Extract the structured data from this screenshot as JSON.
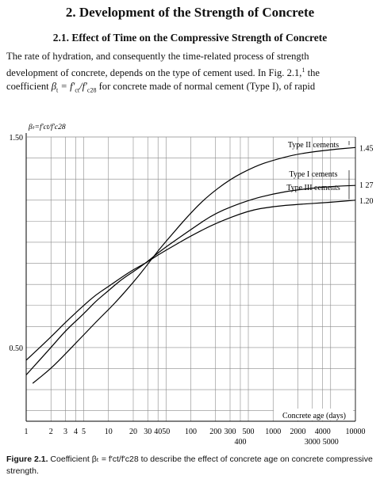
{
  "section": {
    "title": "2. Development of the Strength of Concrete"
  },
  "subsection": {
    "title": "2.1. Effect of Time on the Compressive Strength of Concrete"
  },
  "paragraph": {
    "line1": "The rate of hydration, and consequently the time-related process of strength",
    "line2_pre": "development of concrete, depends on the type of cement used. In Fig. 2.1,",
    "line2_sup": "1",
    "line2_post": " the",
    "line3_pre": "coefficient ",
    "beta_symbol": "β",
    "beta_sub": "t",
    "line3_eq": " = f′",
    "fct_sub": "ct",
    "fc28": "/f′",
    "fc28_sub": "c28",
    "line3_post": " for concrete made of normal cement (Type I), of rapid"
  },
  "caption": {
    "label": "Figure 2.1.",
    "text": " Coefficient βₜ = f′ct/f′c28 to describe the effect of concrete age on concrete compressive strength."
  },
  "chart_data": {
    "type": "line",
    "x_scale": "log",
    "xlim": [
      1,
      10000
    ],
    "ylim": [
      0.15,
      1.5
    ],
    "ylabel": "βₜ=f′ct/f′c28",
    "xlabel": "Concrete age (days)",
    "y_tick_labels": [
      {
        "value": 1.5,
        "label": "1.50"
      },
      {
        "value": 0.5,
        "label": "0.50"
      }
    ],
    "y_grid": [
      0.2,
      0.3,
      0.4,
      0.5,
      0.6,
      0.7,
      0.8,
      0.9,
      1.0,
      1.1,
      1.2,
      1.3,
      1.4,
      1.5
    ],
    "x_tick_labels": [
      {
        "value": 1,
        "label": "1",
        "row": 0
      },
      {
        "value": 2,
        "label": "2",
        "row": 0
      },
      {
        "value": 3,
        "label": "3",
        "row": 0
      },
      {
        "value": 4,
        "label": "4",
        "row": 0
      },
      {
        "value": 5,
        "label": "5",
        "row": 0
      },
      {
        "value": 10,
        "label": "10",
        "row": 0
      },
      {
        "value": 20,
        "label": "20",
        "row": 0
      },
      {
        "value": 30,
        "label": "30",
        "row": 0
      },
      {
        "value": 40,
        "label": "40",
        "row": 0
      },
      {
        "value": 50,
        "label": "50",
        "row": 0
      },
      {
        "value": 100,
        "label": "100",
        "row": 0
      },
      {
        "value": 200,
        "label": "200",
        "row": 0
      },
      {
        "value": 300,
        "label": "300",
        "row": 0
      },
      {
        "value": 400,
        "label": "400",
        "row": 1
      },
      {
        "value": 500,
        "label": "500",
        "row": 0
      },
      {
        "value": 1000,
        "label": "1000",
        "row": 0
      },
      {
        "value": 2000,
        "label": "2000",
        "row": 0
      },
      {
        "value": 3000,
        "label": "3000",
        "row": 1
      },
      {
        "value": 4000,
        "label": "4000",
        "row": 0
      },
      {
        "value": 5000,
        "label": "5000",
        "row": 1
      },
      {
        "value": 10000,
        "label": "10000",
        "row": 0
      }
    ],
    "x_grid": [
      1,
      2,
      3,
      4,
      5,
      10,
      20,
      30,
      40,
      50,
      100,
      200,
      300,
      400,
      500,
      1000,
      2000,
      3000,
      4000,
      5000,
      10000
    ],
    "series": [
      {
        "name": "Type II cements",
        "end_value": "1.45",
        "x": [
          1.2,
          2,
          3,
          5,
          7,
          10,
          14,
          20,
          28,
          40,
          60,
          90,
          150,
          300,
          600,
          1000,
          2000,
          5000,
          10000
        ],
        "y": [
          0.33,
          0.4,
          0.47,
          0.56,
          0.62,
          0.68,
          0.74,
          0.81,
          0.88,
          0.96,
          1.04,
          1.12,
          1.21,
          1.3,
          1.36,
          1.39,
          1.42,
          1.44,
          1.45
        ]
      },
      {
        "name": "Type I cements",
        "end_value": "1 27",
        "x": [
          1,
          2,
          3,
          5,
          7,
          10,
          14,
          20,
          28,
          40,
          60,
          100,
          200,
          500,
          1000,
          2000,
          5000,
          10000
        ],
        "y": [
          0.37,
          0.5,
          0.58,
          0.66,
          0.72,
          0.77,
          0.82,
          0.86,
          0.9,
          0.95,
          1.0,
          1.06,
          1.14,
          1.2,
          1.23,
          1.25,
          1.265,
          1.27
        ]
      },
      {
        "name": "Type III cements",
        "end_value": "1.20",
        "x": [
          1,
          2,
          3,
          5,
          7,
          10,
          14,
          20,
          28,
          40,
          60,
          100,
          200,
          500,
          1000,
          2000,
          5000,
          10000
        ],
        "y": [
          0.44,
          0.55,
          0.62,
          0.7,
          0.75,
          0.79,
          0.83,
          0.87,
          0.9,
          0.94,
          0.98,
          1.03,
          1.09,
          1.15,
          1.17,
          1.18,
          1.19,
          1.2
        ]
      }
    ]
  }
}
